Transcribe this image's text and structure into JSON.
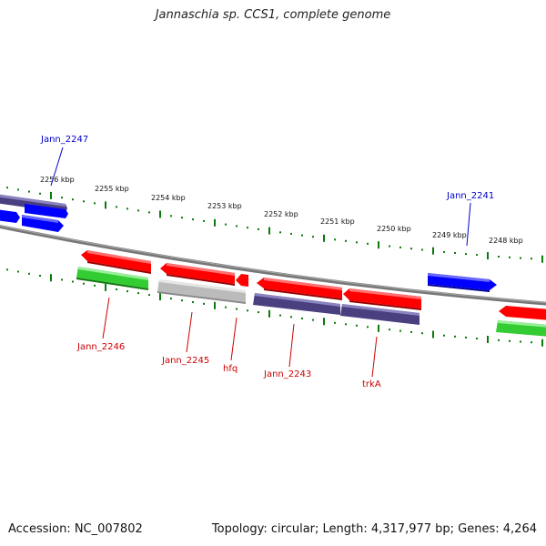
{
  "title": "Jannaschia sp. CCS1, complete genome",
  "footer": {
    "accession": "Accession: NC_007802",
    "topology": "Topology: circular; Length: 4,317,977 bp; Genes: 4,264"
  },
  "colors": {
    "forward_gene": "#ff0000",
    "forward_gene_alt": "#0000ff",
    "reverse_rna": "#33cc33",
    "reverse_gene": "#4a4080",
    "pseudo": "#bbbbbb",
    "backbone": "#777777",
    "ticks": "#0a7a0a",
    "upper_labels": "#0000cc",
    "lower_labels": "#cc0000"
  },
  "scale_labels": [
    "2256 kbp",
    "2255 kbp",
    "2254 kbp",
    "2253 kbp",
    "2252 kbp",
    "2251 kbp",
    "2250 kbp",
    "2249 kbp",
    "2248 kbp"
  ],
  "gene_labels_upper": [
    "Jann_2247",
    "Jann_2241"
  ],
  "gene_labels_lower": [
    "Jann_2246",
    "Jann_2245",
    "hfq",
    "Jann_2243",
    "trkA"
  ]
}
